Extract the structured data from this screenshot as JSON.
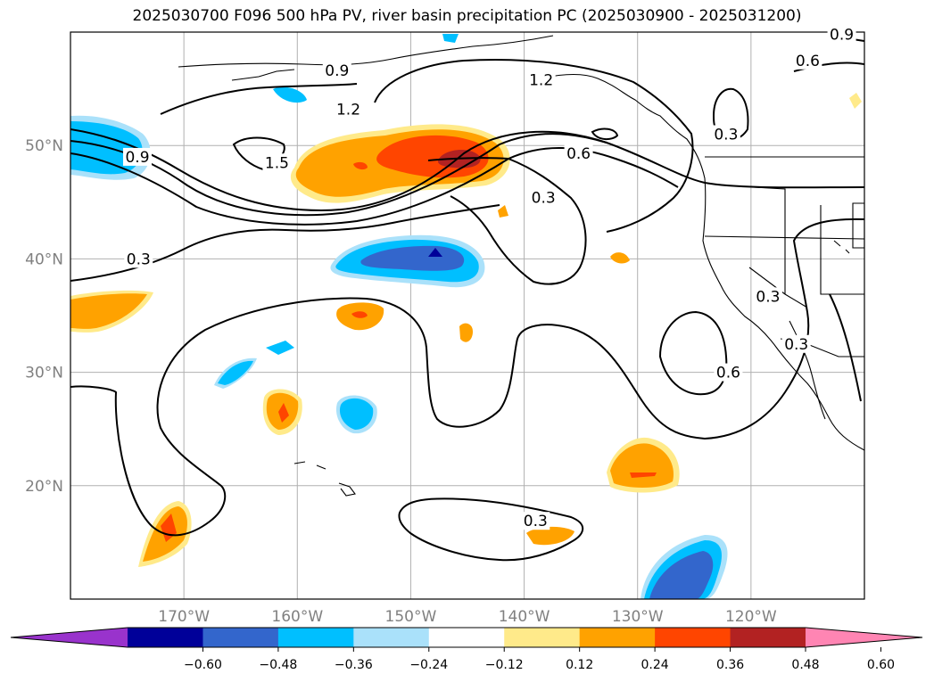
{
  "title": "2025030700 F096 500 hPa PV, river basin precipitation PC (2025030900 - 2025031200)",
  "map": {
    "lat_labels": [
      {
        "lat": 50,
        "label": "50°N"
      },
      {
        "lat": 40,
        "label": "40°N"
      },
      {
        "lat": 30,
        "label": "30°N"
      },
      {
        "lat": 20,
        "label": "20°N"
      }
    ],
    "lon_labels": [
      {
        "lon": -170,
        "label": "170°W"
      },
      {
        "lon": -160,
        "label": "160°W"
      },
      {
        "lon": -150,
        "label": "150°W"
      },
      {
        "lon": -140,
        "label": "140°W"
      },
      {
        "lon": -130,
        "label": "130°W"
      },
      {
        "lon": -120,
        "label": "120°W"
      }
    ],
    "extent": {
      "lon_min": -180,
      "lon_max": -110,
      "lat_min": 10,
      "lat_max": 60
    },
    "grid_color": "#b0b0b0",
    "tick_label_color": "#808080"
  },
  "contour_labels": [
    {
      "text": "0.9",
      "lon": -156.5,
      "lat": 56.6
    },
    {
      "text": "1.2",
      "lon": -155.5,
      "lat": 53.2
    },
    {
      "text": "1.5",
      "lon": -161.8,
      "lat": 48.5
    },
    {
      "text": "0.9",
      "lon": -174.1,
      "lat": 49.0
    },
    {
      "text": "0.3",
      "lon": -174.0,
      "lat": 40.0
    },
    {
      "text": "1.2",
      "lon": -138.5,
      "lat": 55.8
    },
    {
      "text": "0.6",
      "lon": -135.2,
      "lat": 49.3
    },
    {
      "text": "0.3",
      "lon": -138.3,
      "lat": 45.4
    },
    {
      "text": "0.3",
      "lon": -122.2,
      "lat": 51.0
    },
    {
      "text": "0.9",
      "lon": -112.0,
      "lat": 59.8
    },
    {
      "text": "0.6",
      "lon": -115.0,
      "lat": 57.5
    },
    {
      "text": "0.6",
      "lon": -122.0,
      "lat": 30.0
    },
    {
      "text": "0.3",
      "lon": -118.5,
      "lat": 36.7
    },
    {
      "text": "0.3",
      "lon": -116.0,
      "lat": 32.5
    },
    {
      "text": "0.3",
      "lon": -139.0,
      "lat": 16.9
    }
  ],
  "colorbar": {
    "colors": [
      "#9933cc",
      "#000099",
      "#3366cc",
      "#00bfff",
      "#aae1fa",
      "#ffffff",
      "#ffea8a",
      "#ffa200",
      "#ff4500",
      "#b22222",
      "#ff85b3"
    ],
    "tick_labels": [
      "−0.60",
      "−0.48",
      "−0.36",
      "−0.24",
      "−0.12",
      "0.12",
      "0.24",
      "0.36",
      "0.48",
      "0.60"
    ]
  }
}
